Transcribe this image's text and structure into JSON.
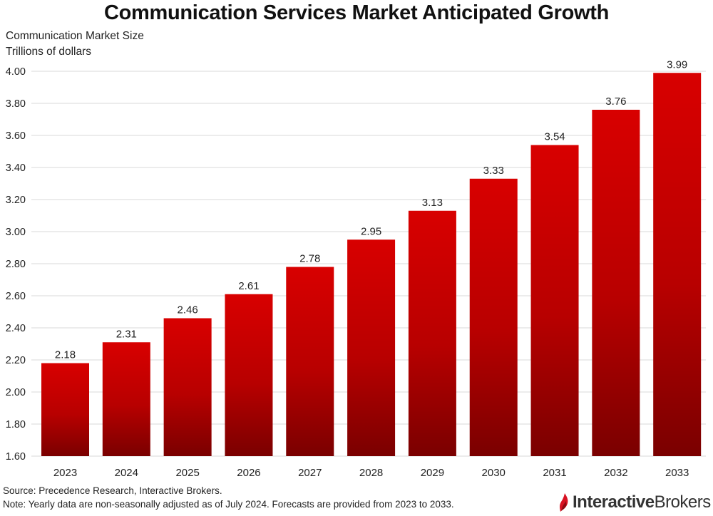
{
  "title": "Communication Services Market Anticipated Growth",
  "ylabel_line1": "Communication Market Size",
  "ylabel_line2": "Trillions of dollars",
  "source": "Source: Precedence Research, Interactive Brokers.",
  "note": "Note: Yearly data are non-seasonally adjusted as of July 2024. Forecasts are provided from 2023 to 2033.",
  "logo": {
    "part1": "Interactive",
    "part2": "Brokers"
  },
  "colors": {
    "bar_top": "#d80000",
    "bar_bottom": "#7a0000",
    "grid": "#d9d9d9",
    "logo_flame": "#d81222"
  },
  "chart_data": {
    "type": "bar",
    "categories": [
      "2023",
      "2024",
      "2025",
      "2026",
      "2027",
      "2028",
      "2029",
      "2030",
      "2031",
      "2032",
      "2033"
    ],
    "values": [
      2.18,
      2.31,
      2.46,
      2.61,
      2.78,
      2.95,
      3.13,
      3.33,
      3.54,
      3.76,
      3.99
    ],
    "title": "Communication Services Market Anticipated Growth",
    "xlabel": "",
    "ylabel": "Communication Market Size Trillions of dollars",
    "ylim": [
      1.6,
      4.0
    ],
    "yticks": [
      "1.60",
      "1.80",
      "2.00",
      "2.20",
      "2.40",
      "2.60",
      "2.80",
      "3.00",
      "3.20",
      "3.40",
      "3.60",
      "3.80",
      "4.00"
    ],
    "grid": true,
    "legend": "none"
  }
}
